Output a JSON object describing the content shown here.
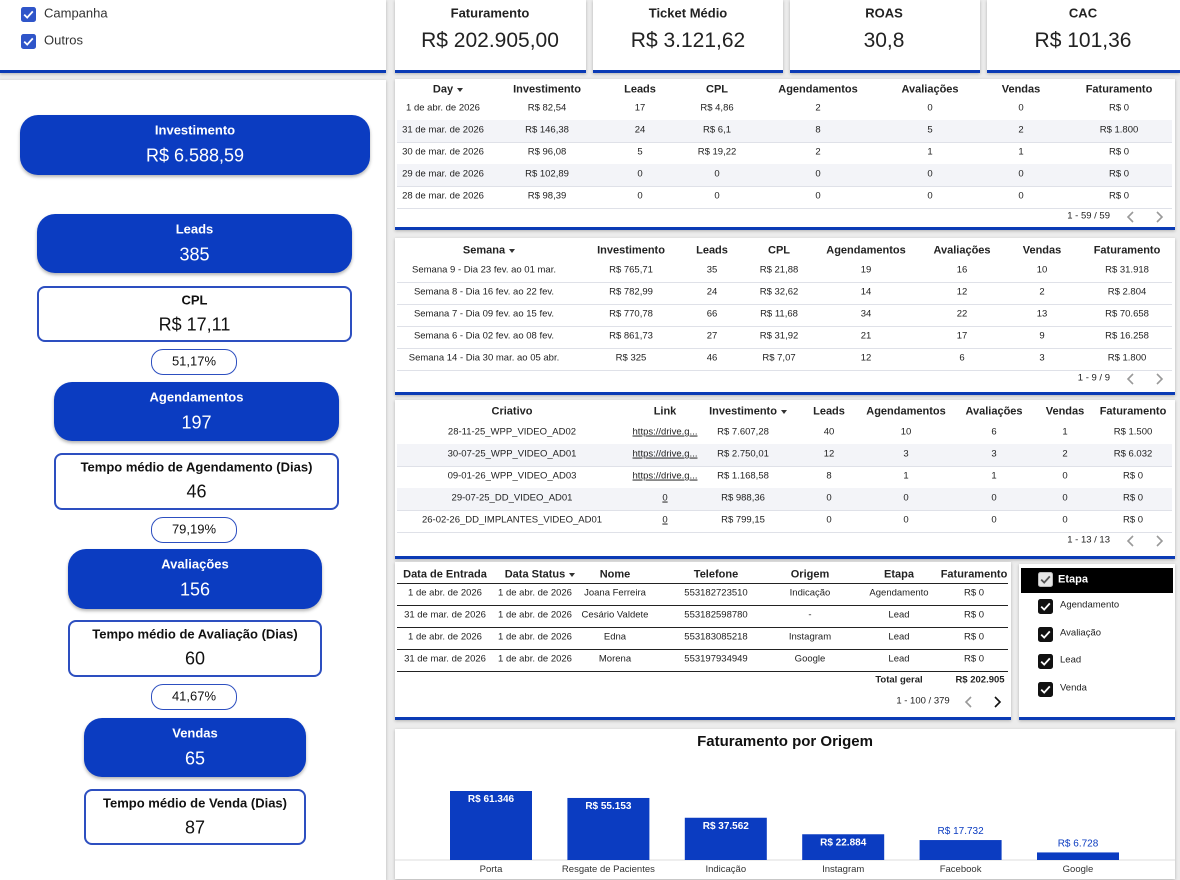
{
  "filters": {
    "options": [
      "Campanha",
      "Outros"
    ]
  },
  "kpis": [
    {
      "label": "Faturamento",
      "value": "R$ 202.905,00"
    },
    {
      "label": "Ticket Médio",
      "value": "R$ 3.121,62"
    },
    {
      "label": "ROAS",
      "value": "30,8"
    },
    {
      "label": "CAC",
      "value": "R$ 101,36"
    }
  ],
  "funnel": {
    "items": [
      {
        "label": "Investimento",
        "value": "R$ 6.588,59"
      },
      {
        "label": "Leads",
        "value": "385"
      },
      {
        "label": "CPL",
        "value": "R$ 17,11"
      },
      {
        "value": "51,17%"
      },
      {
        "label": "Agendamentos",
        "value": "197"
      },
      {
        "label": "Tempo médio de Agendamento (Dias)",
        "value": "46"
      },
      {
        "value": "79,19%"
      },
      {
        "label": "Avaliações",
        "value": "156"
      },
      {
        "label": "Tempo médio de Avaliação (Dias)",
        "value": "60"
      },
      {
        "value": "41,67%"
      },
      {
        "label": "Vendas",
        "value": "65"
      },
      {
        "label": "Tempo médio de Venda (Dias)",
        "value": "87"
      }
    ]
  },
  "daily_table": {
    "headers": [
      "Day",
      "Investimento",
      "Leads",
      "CPL",
      "Agendamentos",
      "Avaliações",
      "Vendas",
      "Faturamento"
    ],
    "rows": [
      [
        "1 de abr. de 2026",
        "R$ 82,54",
        "17",
        "R$ 4,86",
        "2",
        "0",
        "0",
        "R$ 0"
      ],
      [
        "31 de mar. de 2026",
        "R$ 146,38",
        "24",
        "R$ 6,1",
        "8",
        "5",
        "2",
        "R$ 1.800"
      ],
      [
        "30 de mar. de 2026",
        "R$ 96,08",
        "5",
        "R$ 19,22",
        "2",
        "1",
        "1",
        "R$ 0"
      ],
      [
        "29 de mar. de 2026",
        "R$ 102,89",
        "0",
        "0",
        "0",
        "0",
        "0",
        "R$ 0"
      ],
      [
        "28 de mar. de 2026",
        "R$ 98,39",
        "0",
        "0",
        "0",
        "0",
        "0",
        "R$ 0"
      ]
    ],
    "pagination": "1 - 59 / 59"
  },
  "weekly_table": {
    "headers": [
      "Semana",
      "Investimento",
      "Leads",
      "CPL",
      "Agendamentos",
      "Avaliações",
      "Vendas",
      "Faturamento"
    ],
    "rows": [
      [
        "Semana 9 - Dia 23 fev. ao 01 mar.",
        "R$ 765,71",
        "35",
        "R$ 21,88",
        "19",
        "16",
        "10",
        "R$ 31.918"
      ],
      [
        "Semana 8 - Dia 16 fev. ao 22 fev.",
        "R$ 782,99",
        "24",
        "R$ 32,62",
        "14",
        "12",
        "2",
        "R$ 2.804"
      ],
      [
        "Semana 7 - Dia 09 fev. ao 15 fev.",
        "R$ 770,78",
        "66",
        "R$ 11,68",
        "34",
        "22",
        "13",
        "R$ 70.658"
      ],
      [
        "Semana 6 - Dia 02 fev. ao 08 fev.",
        "R$ 861,73",
        "27",
        "R$ 31,92",
        "21",
        "17",
        "9",
        "R$ 16.258"
      ],
      [
        "Semana 14 - Dia 30 mar. ao 05 abr.",
        "R$ 325",
        "46",
        "R$ 7,07",
        "12",
        "6",
        "3",
        "R$ 1.800"
      ]
    ],
    "pagination": "1 - 9 / 9"
  },
  "creative_table": {
    "headers": [
      "Criativo",
      "Link",
      "Investimento",
      "Leads",
      "Agendamentos",
      "Avaliações",
      "Vendas",
      "Faturamento"
    ],
    "rows": [
      [
        "28-11-25_WPP_VIDEO_AD02",
        "https://drive.g...",
        "R$ 7.607,28",
        "40",
        "10",
        "6",
        "1",
        "R$ 1.500"
      ],
      [
        "30-07-25_WPP_VIDEO_AD01",
        "https://drive.g...",
        "R$ 2.750,01",
        "12",
        "3",
        "3",
        "2",
        "R$ 6.032"
      ],
      [
        "09-01-26_WPP_VIDEO_AD03",
        "https://drive.g...",
        "R$ 1.168,58",
        "8",
        "1",
        "1",
        "0",
        "R$ 0"
      ],
      [
        "29-07-25_DD_VIDEO_AD01",
        "0",
        "R$ 988,36",
        "0",
        "0",
        "0",
        "0",
        "R$ 0"
      ],
      [
        "26-02-26_DD_IMPLANTES_VIDEO_AD01",
        "0",
        "R$ 799,15",
        "0",
        "0",
        "0",
        "0",
        "R$ 0"
      ]
    ],
    "pagination": "1 - 13 / 13"
  },
  "leads_table": {
    "headers": [
      "Data de Entrada",
      "Data Status",
      "Nome",
      "Telefone",
      "Origem",
      "Etapa",
      "Faturamento"
    ],
    "rows": [
      [
        "1 de abr. de 2026",
        "1 de abr. de 2026",
        "Joana Ferreira",
        "553182723510",
        "Indicação",
        "Agendamento",
        "R$ 0"
      ],
      [
        "31 de mar. de 2026",
        "1 de abr. de 2026",
        "Cesário Valdete",
        "553182598780",
        "-",
        "Lead",
        "R$ 0"
      ],
      [
        "1 de abr. de 2026",
        "1 de abr. de 2026",
        "Edna",
        "553183085218",
        "Instagram",
        "Lead",
        "R$ 0"
      ],
      [
        "31 de mar. de 2026",
        "1 de abr. de 2026",
        "Morena",
        "553197934949",
        "Google",
        "Lead",
        "R$ 0"
      ]
    ],
    "total": {
      "label": "Total geral",
      "value": "R$ 202.905"
    },
    "pagination": "1 - 100 / 379"
  },
  "stage_filter": {
    "title": "Etapa",
    "options": [
      "Agendamento",
      "Avaliação",
      "Lead",
      "Venda"
    ]
  },
  "chart_data": {
    "type": "bar",
    "title": "Faturamento por Origem",
    "categories": [
      "Porta",
      "Resgate de Pacientes",
      "Indicação",
      "Instagram",
      "Facebook",
      "Google"
    ],
    "values": [
      61346,
      55153,
      37562,
      22884,
      17732,
      6728
    ],
    "value_labels": [
      "R$ 61.346",
      "R$ 55.153",
      "R$ 37.562",
      "R$ 22.884",
      "R$ 17.732",
      "R$ 6.728"
    ],
    "color": "#0b3cc1"
  }
}
